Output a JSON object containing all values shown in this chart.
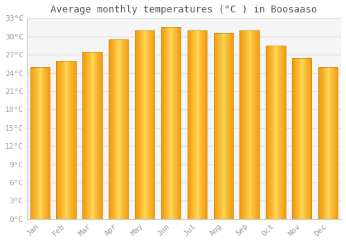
{
  "title": "Average monthly temperatures (°C ) in Boosaaso",
  "months": [
    "Jan",
    "Feb",
    "Mar",
    "Apr",
    "May",
    "Jun",
    "Jul",
    "Aug",
    "Sep",
    "Oct",
    "Nov",
    "Dec"
  ],
  "values": [
    25.0,
    26.0,
    27.5,
    29.5,
    31.0,
    31.5,
    31.0,
    30.5,
    31.0,
    28.5,
    26.5,
    25.0
  ],
  "bar_color_main": "#FFC020",
  "bar_color_light": "#FFE080",
  "bar_color_dark": "#E08800",
  "bar_color_edge": "#BB8800",
  "ylim": [
    0,
    33
  ],
  "yticks": [
    0,
    3,
    6,
    9,
    12,
    15,
    18,
    21,
    24,
    27,
    30,
    33
  ],
  "ytick_labels": [
    "0°C",
    "3°C",
    "6°C",
    "9°C",
    "12°C",
    "15°C",
    "18°C",
    "21°C",
    "24°C",
    "27°C",
    "30°C",
    "33°C"
  ],
  "background_color": "#ffffff",
  "plot_bg_color": "#f5f5f5",
  "grid_color": "#dddddd",
  "title_fontsize": 10,
  "tick_fontsize": 8,
  "font_family": "monospace",
  "tick_color": "#999999",
  "spine_color": "#cccccc"
}
